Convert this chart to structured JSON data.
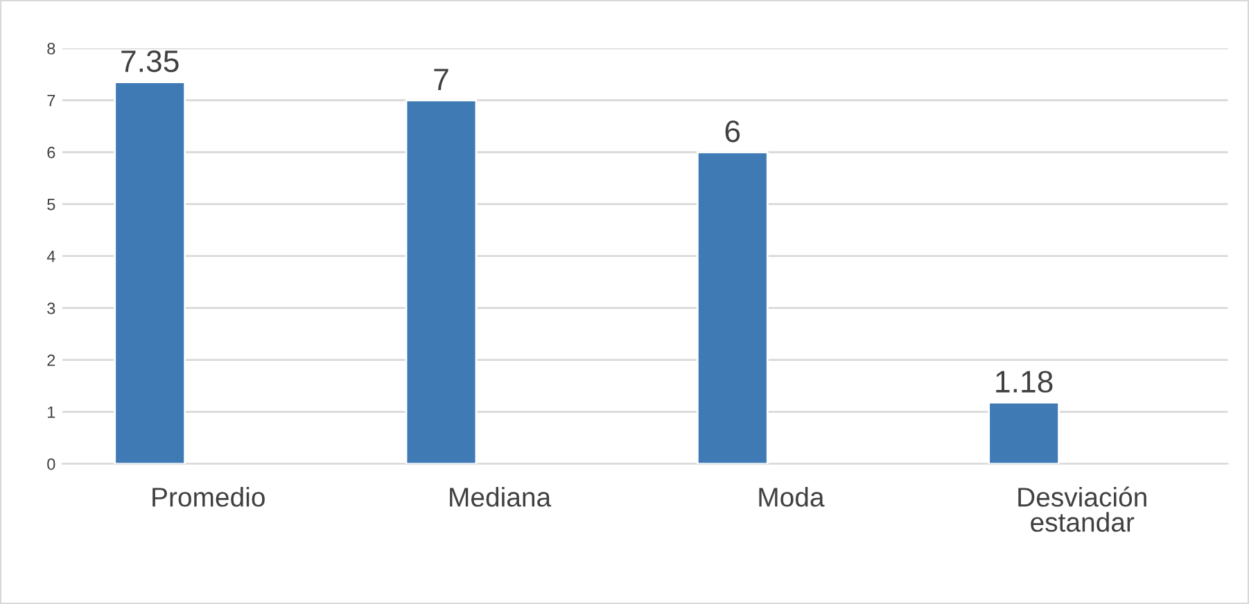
{
  "chart_data": {
    "type": "bar",
    "categories": [
      "Promedio",
      "Mediana",
      "Moda",
      "Desviación estandar"
    ],
    "values": [
      7.35,
      7,
      6,
      1.18
    ],
    "color": "#3f7ab5",
    "ylim": [
      0,
      8
    ],
    "yticks": [
      0,
      1,
      2,
      3,
      4,
      5,
      6,
      7,
      8
    ],
    "grid": "y",
    "data_labels": true
  }
}
